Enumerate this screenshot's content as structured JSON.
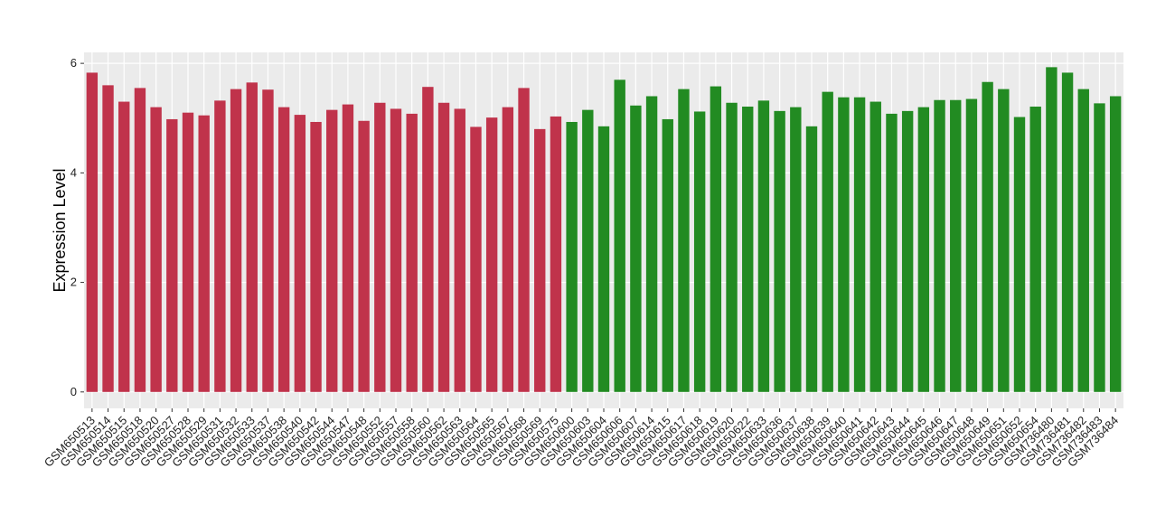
{
  "chart_data": {
    "type": "bar",
    "y_label": "Expression Level",
    "categories": [
      "GSM650513",
      "GSM650514",
      "GSM650515",
      "GSM650518",
      "GSM650520",
      "GSM650527",
      "GSM650528",
      "GSM650529",
      "GSM650531",
      "GSM650532",
      "GSM650533",
      "GSM650537",
      "GSM650538",
      "GSM650540",
      "GSM650542",
      "GSM650544",
      "GSM650547",
      "GSM650548",
      "GSM650552",
      "GSM650557",
      "GSM650558",
      "GSM650560",
      "GSM650562",
      "GSM650563",
      "GSM650564",
      "GSM650565",
      "GSM650567",
      "GSM650568",
      "GSM650569",
      "GSM650575",
      "GSM650600",
      "GSM650603",
      "GSM650604",
      "GSM650606",
      "GSM650607",
      "GSM650614",
      "GSM650615",
      "GSM650617",
      "GSM650618",
      "GSM650619",
      "GSM650620",
      "GSM650622",
      "GSM650633",
      "GSM650636",
      "GSM650637",
      "GSM650638",
      "GSM650639",
      "GSM650640",
      "GSM650641",
      "GSM650642",
      "GSM650643",
      "GSM650644",
      "GSM650645",
      "GSM650646",
      "GSM650647",
      "GSM650648",
      "GSM650649",
      "GSM650651",
      "GSM650652",
      "GSM650654",
      "GSM736480",
      "GSM736481",
      "GSM736482",
      "GSM736483",
      "GSM736484"
    ],
    "values": [
      5.83,
      5.6,
      5.3,
      5.55,
      5.2,
      4.98,
      5.1,
      5.05,
      5.32,
      5.53,
      5.65,
      5.52,
      5.2,
      5.06,
      4.93,
      5.15,
      5.25,
      4.95,
      5.28,
      5.17,
      5.08,
      5.57,
      5.28,
      5.17,
      4.84,
      5.01,
      5.2,
      5.55,
      4.8,
      5.03,
      4.93,
      5.15,
      4.85,
      5.7,
      5.23,
      5.4,
      4.98,
      5.53,
      5.12,
      5.58,
      5.28,
      5.21,
      5.32,
      5.13,
      5.2,
      4.85,
      5.48,
      5.38,
      5.38,
      5.3,
      5.08,
      5.13,
      5.2,
      5.33,
      5.33,
      5.35,
      5.66,
      5.53,
      5.02,
      5.21,
      5.93,
      5.83,
      5.53,
      5.27,
      5.4
    ],
    "colors": [
      "#c0334b",
      "#c0334b",
      "#c0334b",
      "#c0334b",
      "#c0334b",
      "#c0334b",
      "#c0334b",
      "#c0334b",
      "#c0334b",
      "#c0334b",
      "#c0334b",
      "#c0334b",
      "#c0334b",
      "#c0334b",
      "#c0334b",
      "#c0334b",
      "#c0334b",
      "#c0334b",
      "#c0334b",
      "#c0334b",
      "#c0334b",
      "#c0334b",
      "#c0334b",
      "#c0334b",
      "#c0334b",
      "#c0334b",
      "#c0334b",
      "#c0334b",
      "#c0334b",
      "#c0334b",
      "#228b22",
      "#228b22",
      "#228b22",
      "#228b22",
      "#228b22",
      "#228b22",
      "#228b22",
      "#228b22",
      "#228b22",
      "#228b22",
      "#228b22",
      "#228b22",
      "#228b22",
      "#228b22",
      "#228b22",
      "#228b22",
      "#228b22",
      "#228b22",
      "#228b22",
      "#228b22",
      "#228b22",
      "#228b22",
      "#228b22",
      "#228b22",
      "#228b22",
      "#228b22",
      "#228b22",
      "#228b22",
      "#228b22",
      "#228b22",
      "#228b22",
      "#228b22",
      "#228b22",
      "#228b22",
      "#228b22"
    ],
    "ylim": [
      -0.3,
      6.2
    ],
    "yticks": [
      0,
      2,
      4,
      6
    ],
    "grid": true
  }
}
